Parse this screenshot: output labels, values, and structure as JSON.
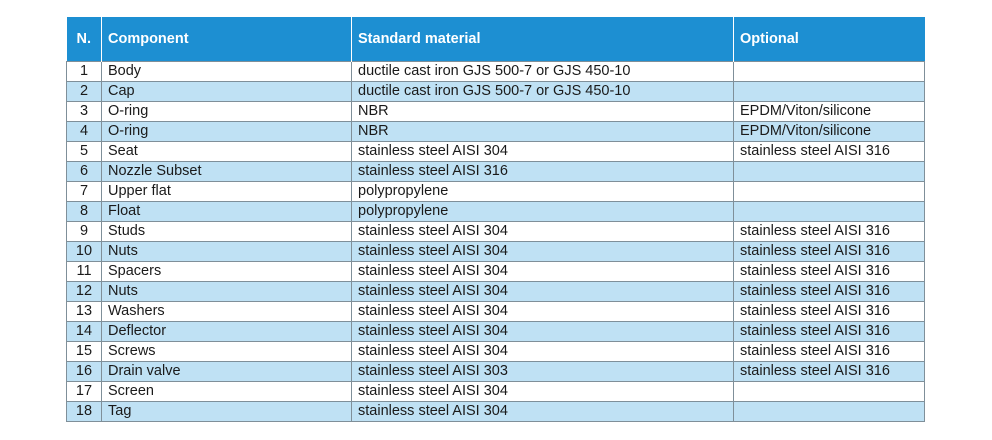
{
  "header": {
    "n": "N.",
    "component": "Component",
    "standard": "Standard material",
    "optional": "Optional"
  },
  "rows": [
    {
      "n": "1",
      "component": "Body",
      "standard": "ductile cast iron GJS 500-7 or GJS 450-10",
      "optional": ""
    },
    {
      "n": "2",
      "component": "Cap",
      "standard": "ductile cast iron GJS 500-7 or GJS 450-10",
      "optional": ""
    },
    {
      "n": "3",
      "component": "O-ring",
      "standard": "NBR",
      "optional": "EPDM/Viton/silicone"
    },
    {
      "n": "4",
      "component": "O-ring",
      "standard": "NBR",
      "optional": "EPDM/Viton/silicone"
    },
    {
      "n": "5",
      "component": "Seat",
      "standard": "stainless steel AISI 304",
      "optional": "stainless steel AISI 316"
    },
    {
      "n": "6",
      "component": "Nozzle Subset",
      "standard": "stainless steel AISI 316",
      "optional": ""
    },
    {
      "n": "7",
      "component": "Upper flat",
      "standard": "polypropylene",
      "optional": ""
    },
    {
      "n": "8",
      "component": "Float",
      "standard": "polypropylene",
      "optional": ""
    },
    {
      "n": "9",
      "component": "Studs",
      "standard": "stainless steel AISI 304",
      "optional": "stainless steel AISI 316"
    },
    {
      "n": "10",
      "component": "Nuts",
      "standard": "stainless steel AISI 304",
      "optional": "stainless steel AISI 316"
    },
    {
      "n": "11",
      "component": "Spacers",
      "standard": "stainless steel AISI 304",
      "optional": "stainless steel AISI 316"
    },
    {
      "n": "12",
      "component": "Nuts",
      "standard": "stainless steel AISI 304",
      "optional": "stainless steel AISI 316"
    },
    {
      "n": "13",
      "component": "Washers",
      "standard": "stainless steel AISI 304",
      "optional": "stainless steel AISI 316"
    },
    {
      "n": "14",
      "component": "Deflector",
      "standard": "stainless steel AISI 304",
      "optional": "stainless steel AISI 316"
    },
    {
      "n": "15",
      "component": "Screws",
      "standard": "stainless steel AISI 304",
      "optional": "stainless steel AISI 316"
    },
    {
      "n": "16",
      "component": "Drain valve",
      "standard": "stainless steel AISI 303",
      "optional": "stainless steel AISI 316"
    },
    {
      "n": "17",
      "component": "Screen",
      "standard": "stainless steel AISI 304",
      "optional": ""
    },
    {
      "n": "18",
      "component": "Tag",
      "standard": "stainless steel AISI 304",
      "optional": ""
    }
  ],
  "colors": {
    "header_bg": "#1d8fd2",
    "header_text": "#ffffff",
    "alt_row_bg": "#bfe1f4",
    "border": "#7f8f99"
  }
}
